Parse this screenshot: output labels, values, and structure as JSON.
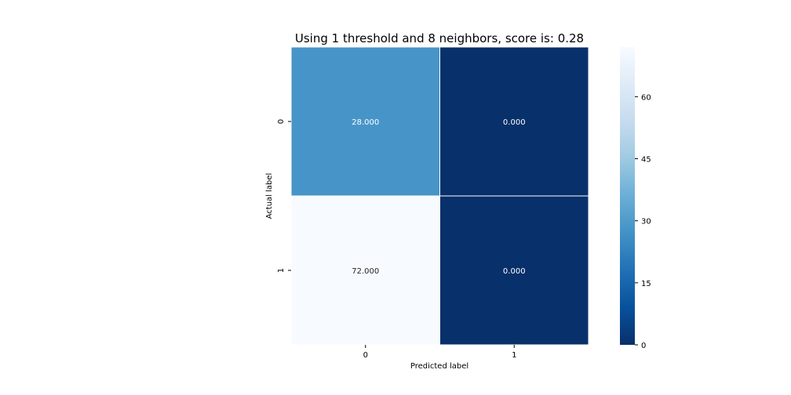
{
  "chart_data": {
    "type": "heatmap",
    "title": "Using 1 threshold and 8 neighbors, score is: 0.28",
    "xlabel": "Predicted label",
    "ylabel": "Actual label",
    "x_categories": [
      "0",
      "1"
    ],
    "y_categories": [
      "0",
      "1"
    ],
    "values": [
      [
        28,
        0
      ],
      [
        72,
        0
      ]
    ],
    "cell_labels": [
      [
        "28.000",
        "0.000"
      ],
      [
        "72.000",
        "0.000"
      ]
    ],
    "colormap": "Blues_r",
    "colorbar": {
      "range": [
        0,
        72
      ],
      "ticks": [
        0,
        15,
        30,
        45,
        60
      ],
      "tick_labels": [
        "0",
        "15",
        "30",
        "45",
        "60"
      ]
    },
    "colors": {
      "low": "#08306b",
      "high": "#f7fbff",
      "text_on_dark": "#ffffff",
      "text_on_light": "#262626"
    }
  }
}
